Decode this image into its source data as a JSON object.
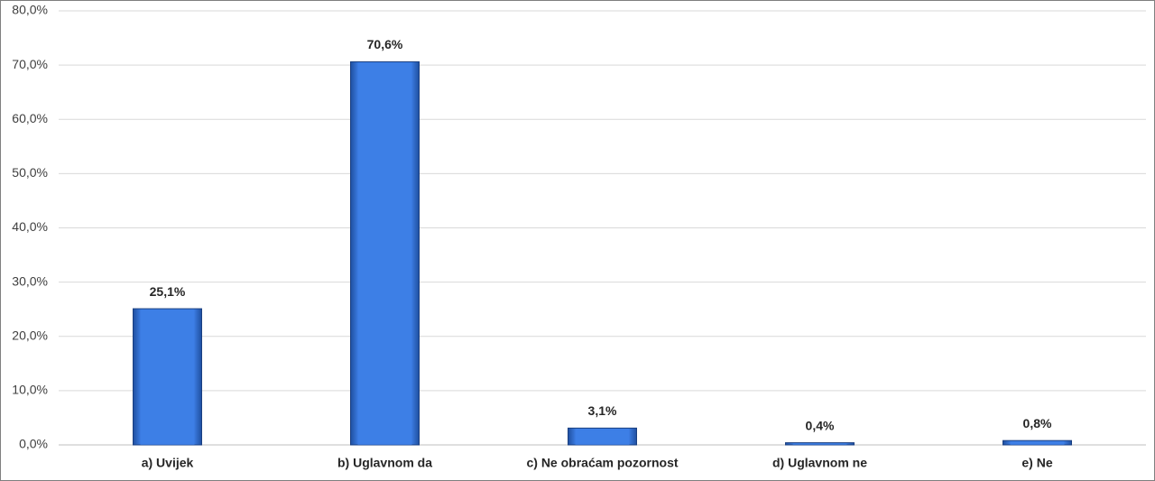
{
  "chart_data": {
    "type": "bar",
    "categories": [
      "a) Uvijek",
      "b) Uglavnom da",
      "c) Ne obraćam pozornost",
      "d) Uglavnom ne",
      "e) Ne"
    ],
    "values": [
      25.1,
      70.6,
      3.1,
      0.4,
      0.8
    ],
    "value_labels": [
      "25,1%",
      "70,6%",
      "3,1%",
      "0,4%",
      "0,8%"
    ],
    "color": "#3d7fe6",
    "ylim": [
      0,
      80
    ],
    "yticks": [
      {
        "value": 0,
        "label": "0,0%"
      },
      {
        "value": 10,
        "label": "10,0%"
      },
      {
        "value": 20,
        "label": "20,0%"
      },
      {
        "value": 30,
        "label": "30,0%"
      },
      {
        "value": 40,
        "label": "40,0%"
      },
      {
        "value": 50,
        "label": "50,0%"
      },
      {
        "value": 60,
        "label": "60,0%"
      },
      {
        "value": 70,
        "label": "70,0%"
      },
      {
        "value": 80,
        "label": "80,0%"
      }
    ],
    "grid": true
  }
}
